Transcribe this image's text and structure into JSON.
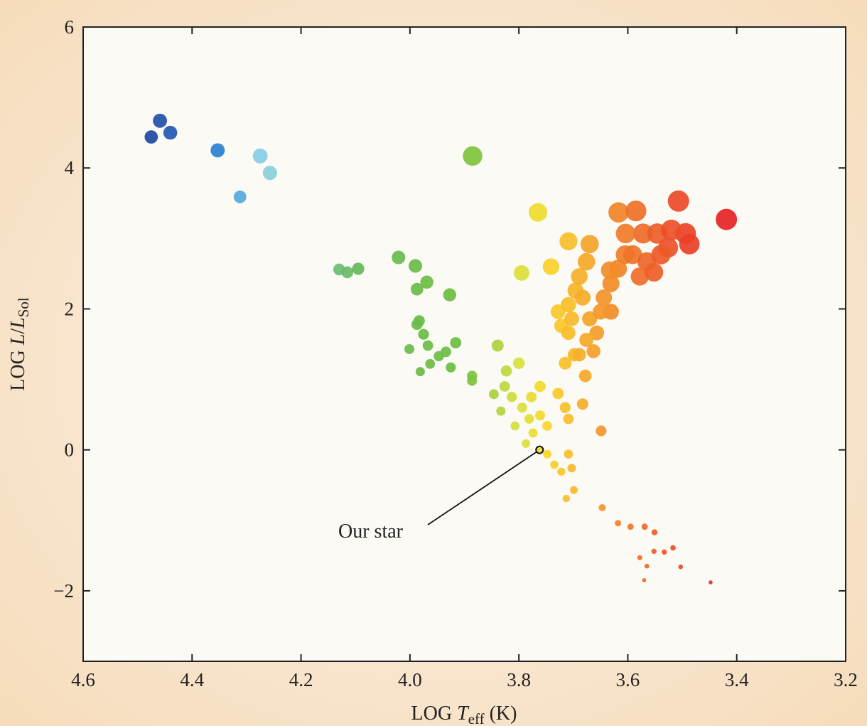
{
  "chart_data": {
    "type": "scatter",
    "title": "",
    "xlabel": {
      "prefix": "LOG ",
      "var": "T",
      "sub": "eff",
      "suffix": " (K)"
    },
    "ylabel": {
      "prefix": "LOG ",
      "var": "L",
      "slash": "/",
      "var2": "L",
      "sub": "Sol"
    },
    "xlim": [
      4.6,
      3.2
    ],
    "ylim": [
      -3,
      6
    ],
    "xticks": [
      "4.6",
      "4.4",
      "4.2",
      "4.0",
      "3.8",
      "3.6",
      "3.4",
      "3.2"
    ],
    "yticks": [
      "6",
      "4",
      "2",
      "0",
      "−2"
    ],
    "grid": false,
    "annotation": {
      "text": "Our star",
      "x": 3.762,
      "y": 0.0
    },
    "points": [
      [
        4.475,
        4.44
      ],
      [
        4.459,
        4.67
      ],
      [
        4.44,
        4.5
      ],
      [
        4.353,
        4.25
      ],
      [
        4.275,
        4.17
      ],
      [
        4.257,
        3.93
      ],
      [
        4.312,
        3.59
      ],
      [
        3.885,
        4.17
      ],
      [
        3.765,
        3.37
      ],
      [
        4.13,
        2.56
      ],
      [
        4.115,
        2.52
      ],
      [
        4.095,
        2.57
      ],
      [
        4.021,
        2.73
      ],
      [
        3.99,
        2.61
      ],
      [
        3.969,
        2.38
      ],
      [
        3.987,
        2.28
      ],
      [
        3.927,
        2.2
      ],
      [
        3.983,
        1.83
      ],
      [
        3.987,
        1.78
      ],
      [
        3.975,
        1.64
      ],
      [
        3.967,
        1.48
      ],
      [
        4.001,
        1.43
      ],
      [
        3.916,
        1.52
      ],
      [
        3.934,
        1.39
      ],
      [
        3.947,
        1.33
      ],
      [
        3.963,
        1.22
      ],
      [
        3.981,
        1.11
      ],
      [
        3.925,
        1.17
      ],
      [
        3.886,
        1.05
      ],
      [
        3.886,
        0.98
      ],
      [
        3.839,
        1.48
      ],
      [
        3.8,
        1.23
      ],
      [
        3.823,
        1.12
      ],
      [
        3.795,
        2.51
      ],
      [
        3.741,
        2.6
      ],
      [
        3.709,
        2.96
      ],
      [
        3.846,
        0.79
      ],
      [
        3.826,
        0.9
      ],
      [
        3.813,
        0.75
      ],
      [
        3.794,
        0.6
      ],
      [
        3.833,
        0.55
      ],
      [
        3.781,
        0.44
      ],
      [
        3.807,
        0.34
      ],
      [
        3.774,
        0.24
      ],
      [
        3.787,
        0.09
      ],
      [
        3.761,
        0.49
      ],
      [
        3.748,
        0.34
      ],
      [
        3.748,
        -0.06
      ],
      [
        3.735,
        -0.21
      ],
      [
        3.722,
        -0.31
      ],
      [
        3.709,
        -0.06
      ],
      [
        3.703,
        -0.26
      ],
      [
        3.699,
        -0.57
      ],
      [
        3.713,
        -0.69
      ],
      [
        3.761,
        0.9
      ],
      [
        3.777,
        0.75
      ],
      [
        3.728,
        0.8
      ],
      [
        3.715,
        0.6
      ],
      [
        3.709,
        0.44
      ],
      [
        3.683,
        0.65
      ],
      [
        3.649,
        0.27
      ],
      [
        3.678,
        1.05
      ],
      [
        3.715,
        1.23
      ],
      [
        3.698,
        1.35
      ],
      [
        3.728,
        1.96
      ],
      [
        3.722,
        1.76
      ],
      [
        3.709,
        2.06
      ],
      [
        3.696,
        2.26
      ],
      [
        3.689,
        2.46
      ],
      [
        3.676,
        2.67
      ],
      [
        3.67,
        2.92
      ],
      [
        3.683,
        2.16
      ],
      [
        3.67,
        1.86
      ],
      [
        3.657,
        1.66
      ],
      [
        3.676,
        1.56
      ],
      [
        3.689,
        1.35
      ],
      [
        3.663,
        1.4
      ],
      [
        3.644,
        2.16
      ],
      [
        3.631,
        2.36
      ],
      [
        3.618,
        2.57
      ],
      [
        3.605,
        2.77
      ],
      [
        3.631,
        1.96
      ],
      [
        3.65,
        1.96
      ],
      [
        3.709,
        1.66
      ],
      [
        3.703,
        1.86
      ],
      [
        3.633,
        2.55
      ],
      [
        3.617,
        3.37
      ],
      [
        3.585,
        3.39
      ],
      [
        3.572,
        3.07
      ],
      [
        3.546,
        3.07
      ],
      [
        3.526,
        2.87
      ],
      [
        3.507,
        3.53
      ],
      [
        3.494,
        3.07
      ],
      [
        3.487,
        2.92
      ],
      [
        3.419,
        3.27
      ],
      [
        3.604,
        3.07
      ],
      [
        3.591,
        2.77
      ],
      [
        3.565,
        2.67
      ],
      [
        3.539,
        2.77
      ],
      [
        3.52,
        3.12
      ],
      [
        3.578,
        2.46
      ],
      [
        3.552,
        2.52
      ],
      [
        3.647,
        -0.82
      ],
      [
        3.618,
        -1.04
      ],
      [
        3.595,
        -1.09
      ],
      [
        3.569,
        -1.09
      ],
      [
        3.551,
        -1.17
      ],
      [
        3.578,
        -1.53
      ],
      [
        3.565,
        -1.65
      ],
      [
        3.552,
        -1.44
      ],
      [
        3.533,
        -1.45
      ],
      [
        3.517,
        -1.39
      ],
      [
        3.503,
        -1.66
      ],
      [
        3.57,
        -1.85
      ],
      [
        3.448,
        -1.88
      ]
    ]
  }
}
